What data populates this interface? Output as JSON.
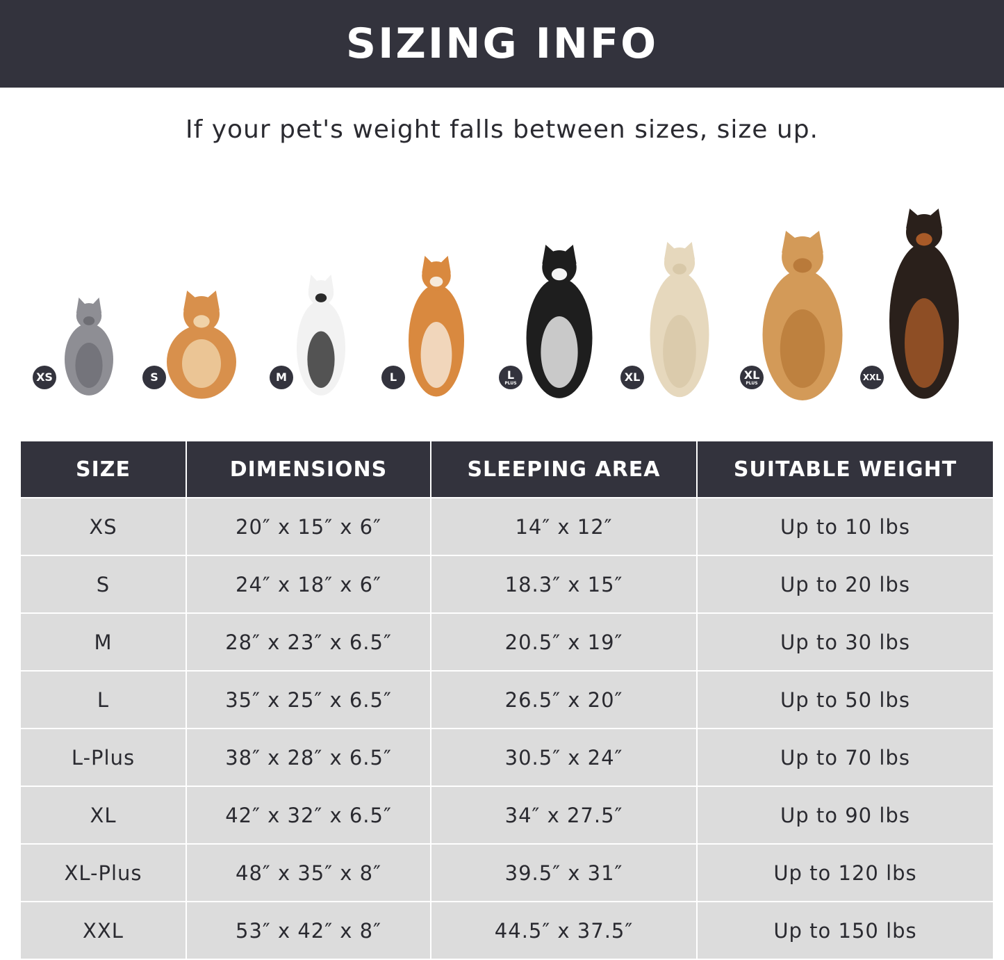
{
  "header": {
    "title": "SIZING INFO"
  },
  "subtitle": "If your pet's weight falls between sizes, size up.",
  "pets": [
    {
      "badge": "XS",
      "plus": "",
      "animal": "gray cat"
    },
    {
      "badge": "S",
      "plus": "",
      "animal": "pomeranian"
    },
    {
      "badge": "M",
      "plus": "",
      "animal": "french bulldog"
    },
    {
      "badge": "L",
      "plus": "",
      "animal": "shiba inu"
    },
    {
      "badge": "L",
      "plus": "PLUS",
      "animal": "border collie"
    },
    {
      "badge": "XL",
      "plus": "",
      "animal": "labrador"
    },
    {
      "badge": "XL",
      "plus": "PLUS",
      "animal": "golden retriever"
    },
    {
      "badge": "XXL",
      "plus": "",
      "animal": "doberman"
    }
  ],
  "table": {
    "headers": [
      "SIZE",
      "DIMENSIONS",
      "SLEEPING AREA",
      "SUITABLE WEIGHT"
    ],
    "rows": [
      [
        "XS",
        "20″ x 15″ x 6″",
        "14″ x 12″",
        "Up to 10 lbs"
      ],
      [
        "S",
        "24″ x 18″ x 6″",
        "18.3″ x 15″",
        "Up to 20 lbs"
      ],
      [
        "M",
        "28″ x 23″ x 6.5″",
        "20.5″ x 19″",
        "Up to 30 lbs"
      ],
      [
        "L",
        "35″ x 25″ x 6.5″",
        "26.5″ x 20″",
        "Up to 50 lbs"
      ],
      [
        "L-Plus",
        "38″ x 28″ x 6.5″",
        "30.5″ x 24″",
        "Up to 70 lbs"
      ],
      [
        "XL",
        "42″ x 32″ x 6.5″",
        "34″ x 27.5″",
        "Up to 90 lbs"
      ],
      [
        "XL-Plus",
        "48″ x 35″ x 8″",
        "39.5″ x 31″",
        "Up to 120 lbs"
      ],
      [
        "XXL",
        "53″ x 42″ x 8″",
        "44.5″ x 37.5″",
        "Up to 150 lbs"
      ]
    ]
  },
  "colors": {
    "dark": "#33333d",
    "row": "#dcdcdc"
  }
}
